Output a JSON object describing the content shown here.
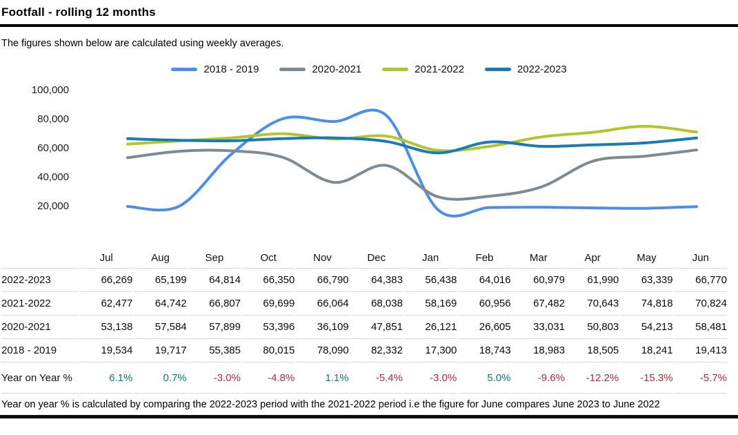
{
  "header": {
    "title": "Footfall - rolling 12 months"
  },
  "subtitle": "The figures shown below are calculated using weekly averages.",
  "chart_data": {
    "type": "line",
    "title": "Footfall - rolling 12 months",
    "x": [
      "Jul",
      "Aug",
      "Sep",
      "Oct",
      "Nov",
      "Dec",
      "Jan",
      "Feb",
      "Mar",
      "Apr",
      "May",
      "Jun"
    ],
    "series": [
      {
        "name": "2018 - 2019",
        "color": "#4d8ee9",
        "values": [
          19534,
          19717,
          55385,
          80015,
          78090,
          82332,
          17300,
          18743,
          18983,
          18505,
          18241,
          19413
        ]
      },
      {
        "name": "2020-2021",
        "color": "#7d8a94",
        "values": [
          53138,
          57584,
          57899,
          53396,
          36109,
          47851,
          26121,
          26605,
          33031,
          50803,
          54213,
          58481
        ]
      },
      {
        "name": "2021-2022",
        "color": "#b2c727",
        "values": [
          62477,
          64742,
          66807,
          69699,
          66064,
          68038,
          58169,
          60956,
          67482,
          70643,
          74818,
          70824
        ]
      },
      {
        "name": "2022-2023",
        "color": "#1c79b7",
        "values": [
          66269,
          65199,
          64814,
          66350,
          66790,
          64383,
          56438,
          64016,
          60979,
          61990,
          63339,
          66770
        ]
      }
    ],
    "yticks": [
      {
        "value": 100000,
        "label": "100,000"
      },
      {
        "value": 80000,
        "label": "80,000"
      },
      {
        "value": 60000,
        "label": "60,000"
      },
      {
        "value": 40000,
        "label": "40,000"
      },
      {
        "value": 20000,
        "label": "20,000"
      }
    ],
    "ylim": [
      10000,
      105000
    ],
    "grid": false,
    "smooth": true,
    "legend_position": "top"
  },
  "table": {
    "columns": [
      "Jul",
      "Aug",
      "Sep",
      "Oct",
      "Nov",
      "Dec",
      "Jan",
      "Feb",
      "Mar",
      "Apr",
      "May",
      "Jun"
    ],
    "rows": [
      {
        "label": "2022-2023",
        "values": [
          "66,269",
          "65,199",
          "64,814",
          "66,350",
          "66,790",
          "64,383",
          "56,438",
          "64,016",
          "60,979",
          "61,990",
          "63,339",
          "66,770"
        ]
      },
      {
        "label": "2021-2022",
        "values": [
          "62,477",
          "64,742",
          "66,807",
          "69,699",
          "66,064",
          "68,038",
          "58,169",
          "60,956",
          "67,482",
          "70,643",
          "74,818",
          "70,824"
        ]
      },
      {
        "label": "2020-2021",
        "values": [
          "53,138",
          "57,584",
          "57,899",
          "53,396",
          "36,109",
          "47,851",
          "26,121",
          "26,605",
          "33,031",
          "50,803",
          "54,213",
          "58,481"
        ]
      },
      {
        "label": "2018 - 2019",
        "values": [
          "19,534",
          "19,717",
          "55,385",
          "80,015",
          "78,090",
          "82,332",
          "17,300",
          "18,743",
          "18,983",
          "18,505",
          "18,241",
          "19,413"
        ]
      }
    ],
    "yoy_row": {
      "label": "Year on Year %",
      "values": [
        "6.1%",
        "0.7%",
        "-3.0%",
        "-4.8%",
        "1.1%",
        "-5.4%",
        "-3.0%",
        "5.0%",
        "-9.6%",
        "-12.2%",
        "-15.3%",
        "-5.7%"
      ]
    }
  },
  "footnote": "Year on year % is calculated by comparing the 2022-2023 period with the 2021-2022 period i.e the figure for June compares June 2023 to June 2022",
  "colors": {
    "yoy_positive": "#0f7b6f",
    "yoy_negative": "#b22b3c",
    "axis_text": "#1a1a1a",
    "separator": "#d8d8d8",
    "rule": "#000000"
  }
}
